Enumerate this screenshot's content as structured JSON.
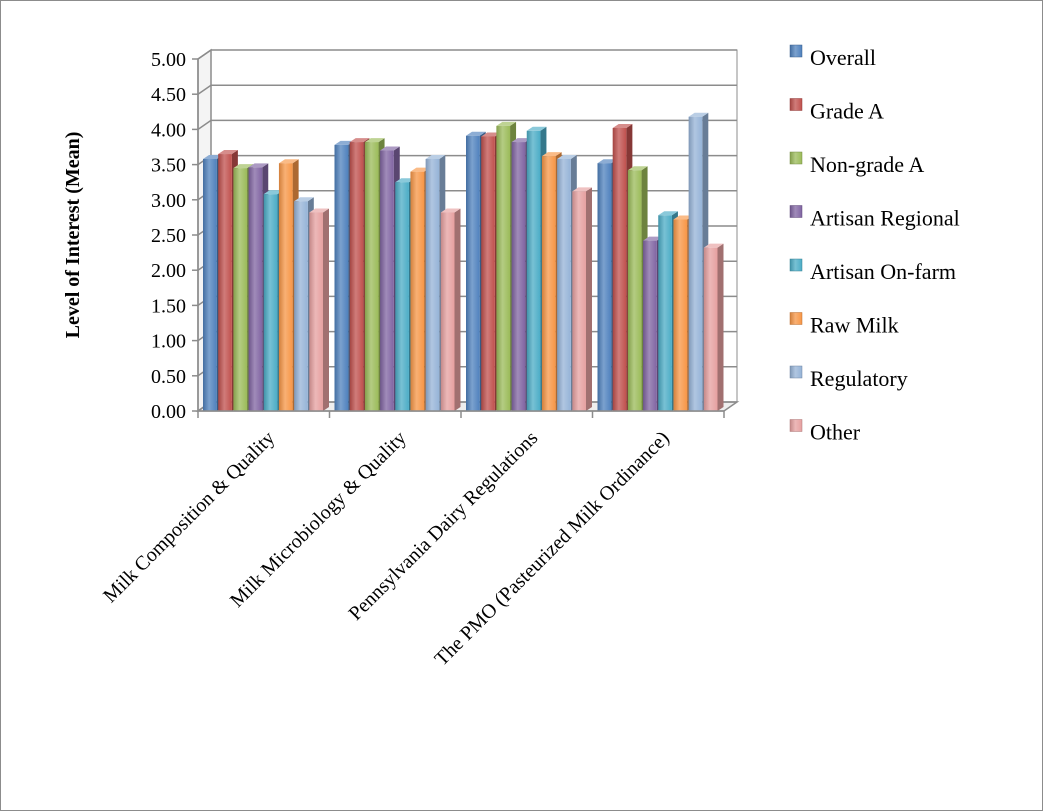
{
  "chart_data": {
    "type": "bar",
    "title": "",
    "xlabel": "",
    "ylabel": "Level of Interest (Mean)",
    "ylim": [
      0,
      5
    ],
    "yticks": [
      "0.00",
      "0.50",
      "1.00",
      "1.50",
      "2.00",
      "2.50",
      "3.00",
      "3.50",
      "4.00",
      "4.50",
      "5.00"
    ],
    "grid": true,
    "legend_position": "right",
    "categories": [
      "Milk Composition & Quality",
      "Milk Microbiology & Quality",
      "Pennsylvania Dairy Regulations",
      "The PMO (Pasteurized Milk Ordinance)"
    ],
    "series": [
      {
        "name": "Overall",
        "color": "#4f81bd",
        "values": [
          3.58,
          3.78,
          3.91,
          3.52
        ]
      },
      {
        "name": "Grade A",
        "color": "#c0504d",
        "values": [
          3.65,
          3.82,
          3.9,
          4.02
        ]
      },
      {
        "name": "Non-grade A",
        "color": "#9bbb59",
        "values": [
          3.45,
          3.82,
          4.05,
          3.42
        ]
      },
      {
        "name": "Artisan Regional",
        "color": "#8064a2",
        "values": [
          3.46,
          3.7,
          3.82,
          2.42
        ]
      },
      {
        "name": "Artisan On-farm",
        "color": "#4bacc6",
        "values": [
          3.08,
          3.25,
          3.98,
          2.78
        ]
      },
      {
        "name": "Raw Milk",
        "color": "#f79646",
        "values": [
          3.52,
          3.4,
          3.62,
          2.72
        ]
      },
      {
        "name": "Regulatory",
        "color": "#95b3d7",
        "values": [
          2.98,
          3.58,
          3.58,
          4.18
        ]
      },
      {
        "name": "Other",
        "color": "#e6a0a0",
        "values": [
          2.82,
          2.82,
          3.12,
          2.32
        ]
      }
    ]
  }
}
